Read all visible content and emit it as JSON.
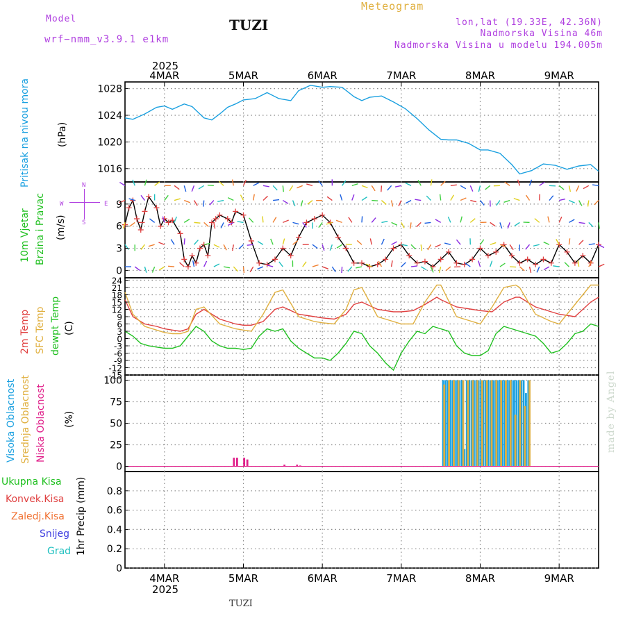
{
  "header": {
    "model_label": "Model",
    "model_name": "wrf−nmm_v3.9.1 e1km",
    "station": "TUZI",
    "chart_type": "Meteogram",
    "lonlat": "lon,lat (19.33E, 42.36N)",
    "elevation": "Nadmorska Visina 46m",
    "model_elevation": "Nadmorska Visina u modelu 194.005m",
    "credit": "made by Angel",
    "footer_station": "TUZI",
    "colors": {
      "model": "#b040e0",
      "meteogram": "#e0b040",
      "station": "#111111",
      "info": "#b040e0"
    }
  },
  "time_axis": {
    "top_year": "2025",
    "bottom_year": "2025",
    "day_labels": [
      "4MAR",
      "5MAR",
      "6MAR",
      "7MAR",
      "8MAR",
      "9MAR"
    ],
    "day_positions": [
      0.5,
      1.5,
      2.5,
      3.5,
      4.5,
      5.5
    ],
    "range_days": [
      0,
      6
    ]
  },
  "panel_labels": {
    "pressure": {
      "lines": [
        {
          "text": "Pritisak na nivou mora",
          "color": "#1aa0e0"
        }
      ],
      "unit": "(hPa)"
    },
    "wind": {
      "lines": [
        {
          "text": "10m Vjetar",
          "color": "#20c020"
        },
        {
          "text": "Brzina i Pravac",
          "color": "#20c020"
        }
      ],
      "unit": "(m/s)",
      "compass": [
        "N",
        "W",
        "E",
        "S"
      ]
    },
    "temp": {
      "lines": [
        {
          "text": "2m Temp",
          "color": "#e04040"
        },
        {
          "text": "SFC Temp",
          "color": "#e0b040"
        },
        {
          "text": "dewpt Temp",
          "color": "#20c020"
        }
      ],
      "unit": "(C)"
    },
    "cloud": {
      "lines": [
        {
          "text": "Visoka Oblacnost",
          "color": "#1aa0e0"
        },
        {
          "text": "Srednja Oblacnost",
          "color": "#e0b040"
        },
        {
          "text": "Niska Oblacnost",
          "color": "#e0208a"
        }
      ],
      "unit": "(%)"
    },
    "precip": {
      "lines": [
        {
          "text": "Ukupna Kisa",
          "color": "#20c020"
        },
        {
          "text": "Konvek.Kisa",
          "color": "#e04040"
        },
        {
          "text": "Zaledj.Kisa",
          "color": "#f07030"
        },
        {
          "text": "Snijeg",
          "color": "#4040e0"
        },
        {
          "text": "Grad",
          "color": "#20c0c0"
        }
      ],
      "unit": "1hr Precip (mm)"
    }
  },
  "chart_data": [
    {
      "type": "line",
      "name": "pressure",
      "ylabel": "(hPa)",
      "ylim": [
        1014,
        1029
      ],
      "yticks": [
        1016,
        1020,
        1024,
        1028
      ],
      "grid": true,
      "series": [
        {
          "name": "Pritisak na nivou mora",
          "color": "#1aa0e0",
          "x": [
            0,
            0.1,
            0.25,
            0.4,
            0.5,
            0.6,
            0.75,
            0.85,
            1.0,
            1.1,
            1.2,
            1.3,
            1.4,
            1.5,
            1.65,
            1.8,
            1.95,
            2.1,
            2.2,
            2.35,
            2.5,
            2.6,
            2.75,
            2.9,
            3.0,
            3.1,
            3.25,
            3.4,
            3.55,
            3.7,
            3.85,
            4.0,
            4.1,
            4.2,
            4.35,
            4.5,
            4.6,
            4.75,
            4.9,
            5.0,
            5.15,
            5.3,
            5.45,
            5.6,
            5.75,
            5.9,
            6.0
          ],
          "y": [
            1023.6,
            1023.4,
            1024.2,
            1025.2,
            1025.4,
            1024.9,
            1025.7,
            1025.3,
            1023.6,
            1023.3,
            1024.2,
            1025.2,
            1025.7,
            1026.3,
            1026.5,
            1027.4,
            1026.5,
            1026.2,
            1027.7,
            1028.5,
            1028.2,
            1028.3,
            1028.2,
            1026.8,
            1026.2,
            1026.7,
            1026.9,
            1026.0,
            1025.0,
            1023.5,
            1021.8,
            1020.4,
            1020.3,
            1020.3,
            1019.8,
            1018.8,
            1018.8,
            1018.3,
            1016.6,
            1015.2,
            1015.7,
            1016.7,
            1016.5,
            1015.9,
            1016.4,
            1016.6,
            1015.6
          ]
        }
      ]
    },
    {
      "type": "line",
      "name": "wind",
      "ylabel": "(m/s)",
      "ylim": [
        -1,
        12
      ],
      "yticks": [
        0,
        3,
        6,
        9
      ],
      "grid": true,
      "series": [
        {
          "name": "wind speed",
          "color": "#000000",
          "marker": "+",
          "marker_color": "#e04040",
          "x": [
            0,
            0.05,
            0.1,
            0.15,
            0.2,
            0.25,
            0.3,
            0.4,
            0.45,
            0.5,
            0.55,
            0.6,
            0.7,
            0.75,
            0.8,
            0.85,
            0.9,
            0.95,
            1.0,
            1.05,
            1.1,
            1.15,
            1.2,
            1.3,
            1.35,
            1.4,
            1.5,
            1.6,
            1.7,
            1.8,
            1.9,
            2.0,
            2.1,
            2.2,
            2.3,
            2.4,
            2.5,
            2.6,
            2.7,
            2.8,
            2.9,
            3.0,
            3.1,
            3.2,
            3.3,
            3.4,
            3.5,
            3.6,
            3.7,
            3.8,
            3.9,
            4.0,
            4.1,
            4.2,
            4.3,
            4.4,
            4.5,
            4.6,
            4.7,
            4.8,
            4.9,
            5.0,
            5.1,
            5.2,
            5.3,
            5.4,
            5.5,
            5.6,
            5.7,
            5.8,
            5.9,
            6.0
          ],
          "y": [
            6.2,
            8.5,
            9.5,
            7.0,
            5.5,
            8.0,
            10.0,
            8.5,
            6.0,
            7.0,
            6.5,
            6.8,
            5.0,
            1.5,
            0.5,
            2.0,
            1.0,
            3.0,
            3.5,
            2.0,
            6.5,
            7.0,
            7.5,
            7.0,
            6.5,
            8.0,
            7.5,
            4.0,
            1.0,
            0.8,
            1.5,
            3.0,
            2.0,
            4.5,
            6.5,
            7.0,
            7.5,
            6.5,
            4.5,
            3.0,
            1.0,
            1.0,
            0.5,
            0.8,
            1.5,
            3.0,
            3.5,
            2.0,
            1.0,
            1.2,
            0.5,
            1.5,
            2.5,
            1.0,
            0.8,
            1.5,
            3.0,
            2.0,
            2.5,
            3.5,
            2.0,
            1.0,
            1.5,
            0.8,
            1.5,
            1.0,
            3.5,
            2.5,
            1.0,
            2.0,
            1.0,
            3.5
          ]
        }
      ]
    },
    {
      "type": "line",
      "name": "temperature",
      "ylabel": "(C)",
      "ylim": [
        -15,
        25
      ],
      "yticks": [
        -15,
        -12,
        -9,
        -6,
        -3,
        0,
        3,
        6,
        9,
        12,
        15,
        18,
        21,
        24
      ],
      "grid": true,
      "series": [
        {
          "name": "2m Temp",
          "color": "#e04040",
          "x": [
            0,
            0.1,
            0.25,
            0.4,
            0.5,
            0.6,
            0.7,
            0.8,
            0.9,
            1.0,
            1.2,
            1.4,
            1.5,
            1.6,
            1.75,
            1.9,
            2.0,
            2.2,
            2.4,
            2.5,
            2.65,
            2.8,
            2.9,
            3.0,
            3.2,
            3.4,
            3.5,
            3.65,
            3.8,
            3.95,
            4.0,
            4.2,
            4.4,
            4.5,
            4.65,
            4.8,
            4.95,
            5.0,
            5.2,
            5.4,
            5.5,
            5.7,
            5.9,
            6.0
          ],
          "y": [
            16,
            9,
            6,
            5,
            4,
            3.5,
            3,
            4,
            10,
            12,
            8,
            6,
            5.5,
            5.5,
            7,
            12,
            13,
            10,
            9,
            8.5,
            8,
            10,
            14,
            15,
            12,
            11,
            11,
            11.5,
            14,
            17,
            16,
            13,
            12,
            11.5,
            11,
            15,
            17,
            17,
            13,
            11,
            10,
            9,
            15,
            17
          ]
        },
        {
          "name": "SFC Temp",
          "color": "#e0b040",
          "x": [
            0,
            0.1,
            0.25,
            0.4,
            0.5,
            0.6,
            0.7,
            0.8,
            0.9,
            1.0,
            1.2,
            1.4,
            1.5,
            1.6,
            1.75,
            1.9,
            2.0,
            2.2,
            2.4,
            2.5,
            2.65,
            2.8,
            2.9,
            3.0,
            3.2,
            3.4,
            3.5,
            3.65,
            3.8,
            3.95,
            4.0,
            4.2,
            4.4,
            4.5,
            4.65,
            4.8,
            4.95,
            5.0,
            5.2,
            5.4,
            5.5,
            5.7,
            5.9,
            6.0
          ],
          "y": [
            19,
            10,
            5,
            3.5,
            2.5,
            2,
            2,
            3,
            12,
            13,
            6,
            4,
            3.5,
            3,
            10,
            19,
            20,
            9,
            7,
            6.5,
            6,
            12,
            20,
            21,
            9,
            7,
            6,
            6,
            15,
            22,
            22,
            9,
            7,
            6,
            13,
            21,
            22,
            21,
            10,
            7,
            6,
            14,
            22,
            22
          ]
        },
        {
          "name": "dewpt Temp",
          "color": "#20c020",
          "x": [
            0,
            0.1,
            0.2,
            0.3,
            0.4,
            0.5,
            0.6,
            0.7,
            0.8,
            0.9,
            1.0,
            1.1,
            1.2,
            1.3,
            1.4,
            1.5,
            1.6,
            1.7,
            1.8,
            1.9,
            2.0,
            2.1,
            2.2,
            2.3,
            2.4,
            2.5,
            2.6,
            2.7,
            2.8,
            2.9,
            3.0,
            3.1,
            3.2,
            3.3,
            3.4,
            3.5,
            3.6,
            3.7,
            3.8,
            3.9,
            4.0,
            4.1,
            4.2,
            4.3,
            4.4,
            4.5,
            4.6,
            4.7,
            4.8,
            4.9,
            5.0,
            5.1,
            5.2,
            5.3,
            5.4,
            5.5,
            5.6,
            5.7,
            5.8,
            5.9,
            6.0
          ],
          "y": [
            3,
            1,
            -2,
            -3,
            -3.5,
            -4,
            -4,
            -3,
            1,
            5,
            3,
            -1,
            -3,
            -4,
            -4,
            -4.5,
            -4,
            1,
            4,
            3,
            4,
            -1,
            -4,
            -6,
            -8,
            -8,
            -9,
            -6,
            -2,
            3,
            2,
            -3,
            -6,
            -10,
            -13,
            -6,
            -1,
            3,
            2,
            5,
            4,
            3,
            -3,
            -6,
            -7,
            -7,
            -5,
            2,
            5,
            4,
            3,
            2,
            1,
            -2,
            -6,
            -5,
            -2,
            2,
            3,
            6,
            5
          ]
        }
      ]
    },
    {
      "type": "bar",
      "name": "cloud cover",
      "ylabel": "(%)",
      "ylim": [
        -6,
        106
      ],
      "yticks": [
        0,
        25,
        50,
        75,
        100
      ],
      "grid": true,
      "series": [
        {
          "name": "Visoka Oblacnost",
          "color": "#1aa0e0",
          "x": [
            4.03,
            4.06,
            4.09,
            4.12,
            4.15,
            4.18,
            4.21,
            4.24,
            4.27,
            4.3,
            4.33,
            4.36,
            4.39,
            4.42,
            4.45,
            4.48,
            4.51,
            4.54,
            4.57,
            4.6,
            4.63,
            4.66,
            4.69,
            4.72,
            4.75,
            4.78,
            4.81,
            4.84,
            4.87,
            4.9,
            4.93,
            4.96,
            4.99,
            5.02,
            5.05,
            5.08,
            5.11
          ],
          "y": [
            100,
            100,
            100,
            100,
            100,
            100,
            100,
            100,
            100,
            20,
            100,
            100,
            100,
            100,
            100,
            100,
            100,
            100,
            100,
            100,
            100,
            100,
            100,
            100,
            100,
            100,
            100,
            100,
            100,
            100,
            100,
            100,
            100,
            100,
            100,
            85,
            100
          ]
        },
        {
          "name": "Srednja Oblacnost",
          "color": "#e0b040",
          "x": [
            4.045,
            4.105,
            4.165,
            4.225,
            4.285,
            4.345,
            4.405,
            4.465,
            4.525,
            4.585,
            4.645,
            4.705,
            4.765,
            4.825,
            4.885,
            4.945,
            5.005,
            5.065,
            5.125
          ],
          "y": [
            95,
            100,
            100,
            100,
            100,
            100,
            100,
            100,
            100,
            100,
            100,
            100,
            100,
            100,
            100,
            60,
            100,
            70,
            100
          ]
        },
        {
          "name": "Niska Oblacnost",
          "color": "#e0208a",
          "x": [
            1.38,
            1.42,
            1.51,
            1.55,
            2.02,
            2.18,
            2.22
          ],
          "y": [
            10,
            10,
            10,
            8,
            2,
            2,
            1
          ]
        }
      ]
    },
    {
      "type": "bar",
      "name": "precipitation",
      "ylabel": "1hr Precip (mm)",
      "ylim": [
        0,
        1
      ],
      "yticks": [
        0,
        0.2,
        0.4,
        0.6,
        0.8
      ],
      "grid": true,
      "series": []
    }
  ]
}
